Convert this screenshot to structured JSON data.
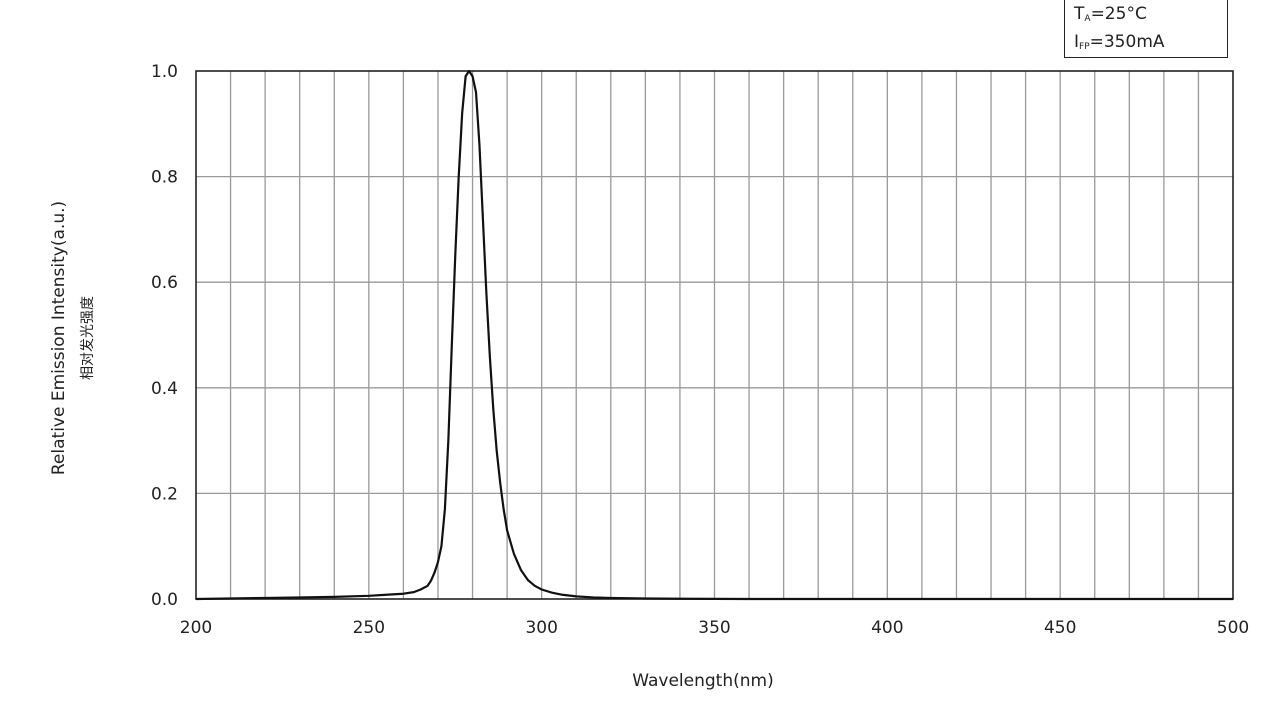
{
  "chart_data": {
    "type": "line",
    "title": "",
    "xlabel": "Wavelength(nm)",
    "ylabel": "Relative Emission Intensity(a.u.)",
    "ylabel_cn": "相对发光强度",
    "xlim": [
      200,
      500
    ],
    "ylim": [
      0,
      1.0
    ],
    "x_ticks": [
      "200",
      "250",
      "300",
      "350",
      "400",
      "450",
      "500"
    ],
    "y_ticks": [
      "0.0",
      "0.2",
      "0.4",
      "0.6",
      "0.8",
      "1.0"
    ],
    "grid": true,
    "legend_position": "top-right",
    "conditions": {
      "ta_symbol": "T",
      "ta_sub": "A",
      "ta_value": "=25°C",
      "ifp_symbol": "I",
      "ifp_sub": "FP",
      "ifp_value": "=350mA"
    },
    "series": [
      {
        "x": [
          200,
          210,
          220,
          230,
          240,
          250,
          255,
          260,
          263,
          265,
          267,
          268,
          269,
          270,
          271,
          272,
          273,
          274,
          275,
          276,
          277,
          278,
          279,
          280,
          281,
          282,
          283,
          284,
          285,
          286,
          287,
          288,
          289,
          290,
          292,
          294,
          296,
          298,
          300,
          303,
          306,
          310,
          315,
          320,
          330,
          340,
          360,
          400,
          450,
          500
        ],
        "y": [
          0.0,
          0.001,
          0.002,
          0.003,
          0.004,
          0.006,
          0.008,
          0.01,
          0.013,
          0.018,
          0.025,
          0.035,
          0.05,
          0.07,
          0.1,
          0.17,
          0.3,
          0.48,
          0.65,
          0.8,
          0.92,
          0.99,
          1.0,
          0.99,
          0.96,
          0.86,
          0.72,
          0.58,
          0.46,
          0.36,
          0.28,
          0.22,
          0.17,
          0.13,
          0.085,
          0.055,
          0.036,
          0.025,
          0.018,
          0.012,
          0.008,
          0.005,
          0.003,
          0.002,
          0.001,
          0.0005,
          0.0,
          0.0,
          0.0,
          0.0
        ]
      }
    ],
    "line_color": "#111111",
    "grid_color": "#9a9a9a"
  }
}
